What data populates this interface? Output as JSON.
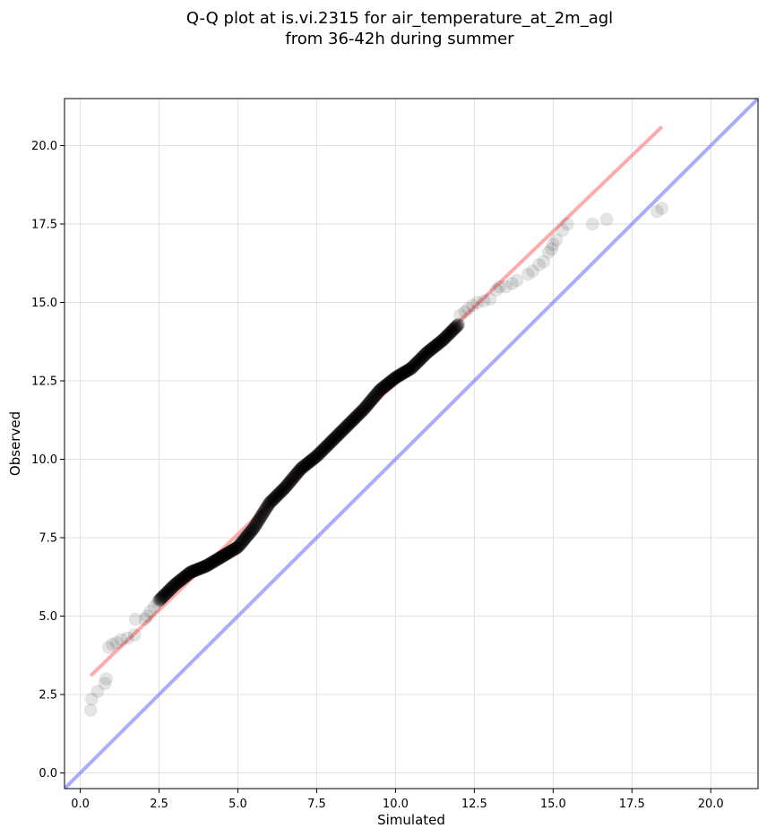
{
  "chart_data": {
    "type": "scatter",
    "title_lines": [
      "Q-Q plot at is.vi.2315 for air_temperature_at_2m_agl",
      "from 36-42h during summer"
    ],
    "xlabel": "Simulated",
    "ylabel": "Observed",
    "xlim": [
      -0.5,
      21.5
    ],
    "ylim": [
      -0.5,
      21.5
    ],
    "xticks": [
      0.0,
      2.5,
      5.0,
      7.5,
      10.0,
      12.5,
      15.0,
      17.5,
      20.0
    ],
    "yticks": [
      0.0,
      2.5,
      5.0,
      7.5,
      10.0,
      12.5,
      15.0,
      17.5,
      20.0
    ],
    "xtick_labels": [
      "0.0",
      "2.5",
      "5.0",
      "7.5",
      "10.0",
      "12.5",
      "15.0",
      "17.5",
      "20.0"
    ],
    "ytick_labels": [
      "0.0",
      "2.5",
      "5.0",
      "7.5",
      "10.0",
      "12.5",
      "15.0",
      "17.5",
      "20.0"
    ],
    "grid": true,
    "colors": {
      "points": "#000000",
      "fit_line": "#ff7f7f",
      "identity_line": "#8080ff",
      "grid": "#e0e0e0"
    },
    "lines": [
      {
        "role": "fit",
        "x": [
          0.33,
          18.45
        ],
        "y": [
          3.1,
          20.6
        ]
      },
      {
        "role": "identity",
        "x": [
          -0.5,
          21.5
        ],
        "y": [
          -0.5,
          21.5
        ]
      }
    ],
    "sparse_points": {
      "x": [
        0.33,
        0.36,
        0.55,
        0.78,
        0.82,
        0.9,
        1.02,
        1.15,
        1.3,
        1.5,
        1.72,
        1.75,
        2.05,
        2.12,
        2.22,
        2.35,
        2.45,
        12.05,
        12.2,
        12.3,
        12.45,
        12.6,
        12.8,
        13.0,
        13.2,
        13.3,
        13.5,
        13.7,
        13.85,
        14.2,
        14.35,
        14.55,
        14.7,
        14.85,
        14.95,
        15.0,
        15.1,
        15.3,
        15.45,
        16.25,
        16.7,
        18.3,
        18.45
      ],
      "y": [
        2.0,
        2.35,
        2.6,
        2.85,
        3.0,
        4.0,
        4.1,
        4.15,
        4.25,
        4.3,
        4.4,
        4.9,
        4.9,
        5.0,
        5.15,
        5.3,
        5.45,
        14.6,
        14.7,
        14.8,
        14.9,
        15.0,
        15.05,
        15.1,
        15.4,
        15.5,
        15.5,
        15.6,
        15.7,
        15.9,
        16.0,
        16.2,
        16.3,
        16.6,
        16.7,
        16.85,
        17.0,
        17.3,
        17.5,
        17.5,
        17.65,
        17.9,
        18.0
      ]
    },
    "dense_band": {
      "x": [
        2.5,
        3.0,
        3.5,
        4.0,
        4.5,
        5.0,
        5.5,
        6.0,
        6.5,
        7.0,
        7.5,
        8.0,
        8.5,
        9.0,
        9.5,
        10.0,
        10.5,
        11.0,
        11.5,
        12.0
      ],
      "y": [
        5.5,
        6.0,
        6.4,
        6.6,
        6.9,
        7.2,
        7.8,
        8.6,
        9.1,
        9.7,
        10.1,
        10.6,
        11.1,
        11.6,
        12.2,
        12.6,
        12.9,
        13.4,
        13.8,
        14.3
      ],
      "count": 900
    }
  }
}
